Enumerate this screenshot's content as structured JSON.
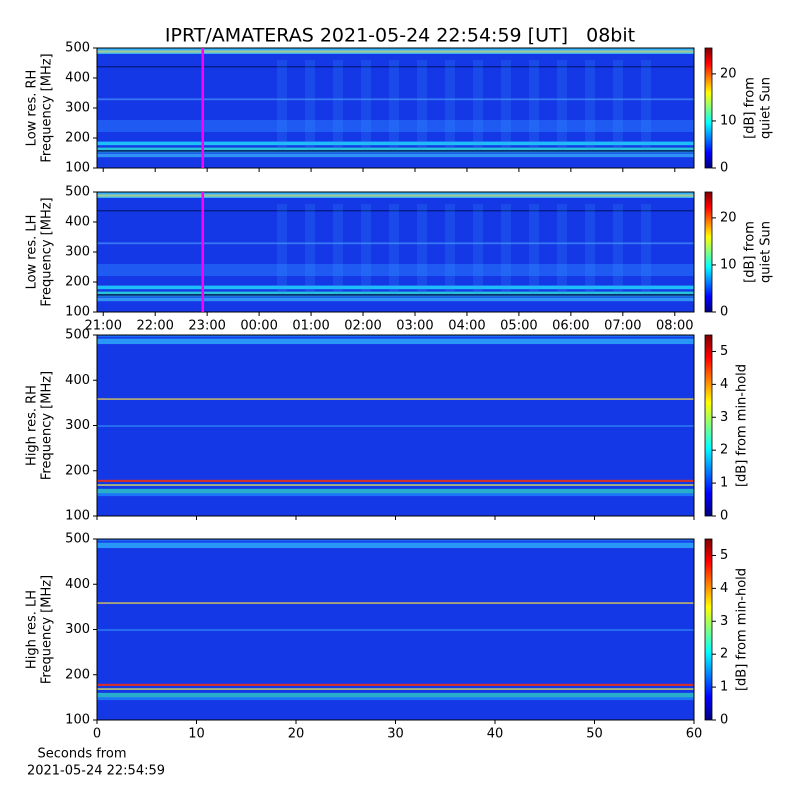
{
  "chart_data": [
    {
      "type": "heatmap",
      "title": "IPRT/AMATERAS 2021-05-24 22:54:59 [UT]   08bit",
      "ylabel": [
        "Low res. RH",
        "Frequency [MHz]"
      ],
      "ylim": [
        100,
        500
      ],
      "yticks": [
        100,
        200,
        300,
        400,
        500
      ],
      "xlim": [
        20.88,
        32.37
      ],
      "marker_x": 22.916,
      "marker_color": "#ff00ff",
      "colorbar": {
        "label": [
          "[dB] from",
          "quiet Sun"
        ],
        "lim": [
          0,
          25.5
        ],
        "ticks": [
          0,
          10,
          20
        ]
      }
    },
    {
      "type": "heatmap",
      "ylabel": [
        "Low res. LH",
        "Frequency [MHz]"
      ],
      "ylim": [
        100,
        500
      ],
      "yticks": [
        100,
        200,
        300,
        400,
        500
      ],
      "xlim": [
        20.88,
        32.37
      ],
      "marker_x": 22.916,
      "marker_color": "#ff00ff",
      "xticks": [
        {
          "value": 21,
          "label": "21:00"
        },
        {
          "value": 22,
          "label": "22:00"
        },
        {
          "value": 23,
          "label": "23:00"
        },
        {
          "value": 24,
          "label": "00:00"
        },
        {
          "value": 25,
          "label": "01:00"
        },
        {
          "value": 26,
          "label": "02:00"
        },
        {
          "value": 27,
          "label": "03:00"
        },
        {
          "value": 28,
          "label": "04:00"
        },
        {
          "value": 29,
          "label": "05:00"
        },
        {
          "value": 30,
          "label": "06:00"
        },
        {
          "value": 31,
          "label": "07:00"
        },
        {
          "value": 32,
          "label": "08:00"
        }
      ],
      "colorbar": {
        "label": [
          "[dB] from",
          "quiet Sun"
        ],
        "lim": [
          0,
          25.5
        ],
        "ticks": [
          0,
          10,
          20
        ]
      }
    },
    {
      "type": "heatmap",
      "ylabel": [
        "High res. RH",
        "Frequency [MHz]"
      ],
      "ylim": [
        100,
        500
      ],
      "yticks": [
        100,
        200,
        300,
        400,
        500
      ],
      "xlim": [
        0,
        60
      ],
      "colorbar": {
        "label": [
          "[dB] from min-hold"
        ],
        "lim": [
          0,
          5.5
        ],
        "ticks": [
          0,
          1,
          2,
          3,
          4,
          5
        ]
      }
    },
    {
      "type": "heatmap",
      "ylabel": [
        "High res. LH",
        "Frequency [MHz]"
      ],
      "ylim": [
        100,
        500
      ],
      "yticks": [
        100,
        200,
        300,
        400,
        500
      ],
      "xlim": [
        0,
        60
      ],
      "xticks": [
        0,
        10,
        20,
        30,
        40,
        50,
        60
      ],
      "xlabel": [
        "Seconds from",
        "2021-05-24 22:54:59"
      ],
      "colorbar": {
        "label": [
          "[dB] from min-hold"
        ],
        "lim": [
          0,
          5.5
        ],
        "ticks": [
          0,
          1,
          2,
          3,
          4,
          5
        ]
      }
    }
  ]
}
